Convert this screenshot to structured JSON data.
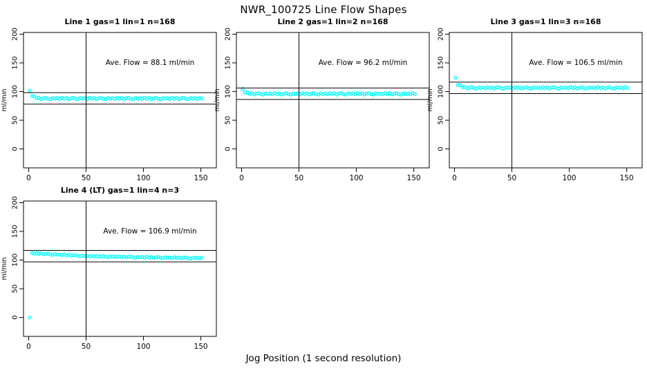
{
  "title": "NWR_100725  Line Flow Shapes",
  "xlabel": "Jog Position (1 second resolution)",
  "colors": {
    "points": "#00ffff",
    "axis": "#000000",
    "background": "#ffffff",
    "text": "#000000"
  },
  "chart_data": {
    "type": "scatter",
    "layout": "4 panels in 2-row grid (3 top, 1 bottom-left)",
    "ylabel": "ml/min",
    "x_ticks": [
      0,
      50,
      100,
      150
    ],
    "y_ticks": [
      0,
      50,
      100,
      150,
      200
    ],
    "x_range": [
      -4.5,
      163.5
    ],
    "y_range": [
      -33,
      203
    ],
    "ref_vline_x": 50,
    "grid": false,
    "panels": [
      {
        "title": "Line 1 gas=1 lin=1 n=168",
        "annotation": "Ave. Flow =  88.1  ml/min",
        "ave_flow": 88.1,
        "hlines": [
          98.1,
          78.1
        ],
        "x_start": 1,
        "x_step": 2,
        "y": [
          101.6,
          92.3,
          91.4,
          88.5,
          89.3,
          86.9,
          88.4,
          89.1,
          87.3,
          86.6,
          88.8,
          87.8,
          88.6,
          87.1,
          89.3,
          87.6,
          89.0,
          86.8,
          88.3,
          89.1,
          87.3,
          86.6,
          88.8,
          87.8,
          88.6,
          87.1,
          89.3,
          87.6,
          89.0,
          86.8,
          88.3,
          89.1,
          87.3,
          86.6,
          88.8,
          87.8,
          88.6,
          87.1,
          89.3,
          87.6,
          89.0,
          86.8,
          88.3,
          89.1,
          87.3,
          86.6,
          88.8,
          87.8,
          88.6,
          87.1,
          89.3,
          87.6,
          89.0,
          86.8,
          88.3,
          89.1,
          87.3,
          86.6,
          88.8,
          87.8,
          88.6,
          87.1,
          89.3,
          87.6,
          89.0,
          86.8,
          88.3,
          89.1,
          87.3,
          86.6,
          88.8,
          87.8,
          88.6,
          87.1,
          89.3,
          87.6
        ]
      },
      {
        "title": "Line 2 gas=1 lin=2 n=168",
        "annotation": "Ave. Flow =  96.2  ml/min",
        "ave_flow": 96.2,
        "hlines": [
          106.2,
          86.2
        ],
        "x_start": 1,
        "x_step": 2,
        "y": [
          104.6,
          98.3,
          98.6,
          96.1,
          97.2,
          94.9,
          96.3,
          97.1,
          95.3,
          94.6,
          96.8,
          95.8,
          96.6,
          95.1,
          97.3,
          95.6,
          97.0,
          94.8,
          96.3,
          97.1,
          95.3,
          94.6,
          96.8,
          95.8,
          96.6,
          95.1,
          97.3,
          95.6,
          97.0,
          94.8,
          96.3,
          97.1,
          95.3,
          94.6,
          96.8,
          95.8,
          96.6,
          95.1,
          97.3,
          95.6,
          97.0,
          94.8,
          96.3,
          97.1,
          95.3,
          94.6,
          96.8,
          95.8,
          96.6,
          95.1,
          97.3,
          95.6,
          97.0,
          94.8,
          96.3,
          97.1,
          95.3,
          94.6,
          96.8,
          95.8,
          96.6,
          95.1,
          97.3,
          95.6,
          97.0,
          94.8,
          96.3,
          97.1,
          95.3,
          94.6,
          96.8,
          95.8,
          96.6,
          95.1,
          97.3,
          95.6
        ]
      },
      {
        "title": "Line 3 gas=1 lin=3 n=168",
        "annotation": "Ave. Flow =  106.5  ml/min",
        "ave_flow": 106.5,
        "hlines": [
          116.5,
          96.5
        ],
        "x_start": 1,
        "x_step": 2,
        "y": [
          124.0,
          111.6,
          110.9,
          107.7,
          108.3,
          105.7,
          107.0,
          107.7,
          105.9,
          105.1,
          107.3,
          106.3,
          107.1,
          105.6,
          107.8,
          106.1,
          107.5,
          105.3,
          106.8,
          107.6,
          105.8,
          105.1,
          107.3,
          106.3,
          107.1,
          105.6,
          107.8,
          106.1,
          107.5,
          105.3,
          106.8,
          107.6,
          105.8,
          105.1,
          107.3,
          106.3,
          107.1,
          105.6,
          107.8,
          106.1,
          107.5,
          105.3,
          106.8,
          107.6,
          105.8,
          105.1,
          107.3,
          106.3,
          107.1,
          105.6,
          107.8,
          106.1,
          107.5,
          105.3,
          106.8,
          107.6,
          105.8,
          105.1,
          107.3,
          106.3,
          107.1,
          105.6,
          107.8,
          106.1,
          107.5,
          105.3,
          106.8,
          107.6,
          105.8,
          105.1,
          107.3,
          106.3,
          107.1,
          105.6,
          107.8,
          106.1
        ]
      },
      {
        "title": "Line 4 (LT) gas=1 lin=4 n=3",
        "annotation": "Ave. Flow =  106.9  ml/min",
        "ave_flow": 106.9,
        "hlines": [
          116.9,
          96.9
        ],
        "x_start": 1,
        "x_step": 2,
        "y": [
          0.0,
          112.4,
          111.2,
          112.5,
          111.0,
          111.8,
          110.1,
          110.9,
          111.3,
          109.8,
          109.0,
          110.4,
          109.5,
          109.8,
          108.6,
          109.9,
          108.4,
          109.2,
          107.5,
          108.3,
          108.7,
          107.2,
          106.4,
          107.8,
          106.9,
          107.3,
          106.2,
          107.6,
          106.3,
          107.2,
          105.7,
          106.6,
          107.1,
          105.7,
          105.1,
          106.6,
          105.8,
          106.3,
          105.2,
          106.6,
          105.3,
          106.2,
          104.6,
          105.6,
          106.1,
          104.7,
          104.1,
          105.7,
          104.9,
          105.4,
          104.3,
          105.8,
          104.5,
          105.5,
          103.9,
          104.8,
          105.4,
          104.0,
          103.5,
          105.0,
          104.2,
          104.7,
          103.6,
          105.1,
          103.8,
          104.7,
          103.2,
          104.1,
          104.7,
          103.3,
          102.7,
          104.3,
          103.5,
          104.0,
          102.9,
          104.4
        ]
      }
    ]
  }
}
